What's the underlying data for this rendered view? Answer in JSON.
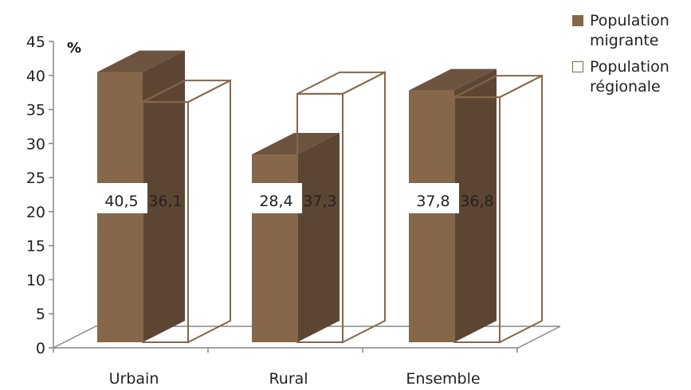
{
  "chart_data": {
    "type": "bar",
    "categories": [
      "Urbain",
      "Rural",
      "Ensemble"
    ],
    "series": [
      {
        "name": "Population migrante",
        "values": [
          40.5,
          28.4,
          37.8
        ],
        "color": "#86674a",
        "style": "filled"
      },
      {
        "name": "Population régionale",
        "values": [
          36.1,
          37.3,
          36.8
        ],
        "color": "#86674a",
        "style": "hollow"
      }
    ],
    "ylabel": "%",
    "ylim": [
      0,
      45
    ],
    "yticks": [
      0,
      5,
      10,
      15,
      20,
      25,
      30,
      35,
      40,
      45
    ],
    "data_labels": [
      "40,5",
      "28,4",
      "37,8",
      "36,1",
      "37,3",
      "36,8"
    ],
    "grid": false,
    "legend": "top-right",
    "three_d": true
  },
  "legend": {
    "items": [
      {
        "label": "Population migrante"
      },
      {
        "label": "Population régionale"
      }
    ]
  },
  "colors": {
    "bar_front": "#86674a",
    "bar_side": "#5c4633",
    "bar_top": "#6d5440",
    "axis": "#868686"
  }
}
